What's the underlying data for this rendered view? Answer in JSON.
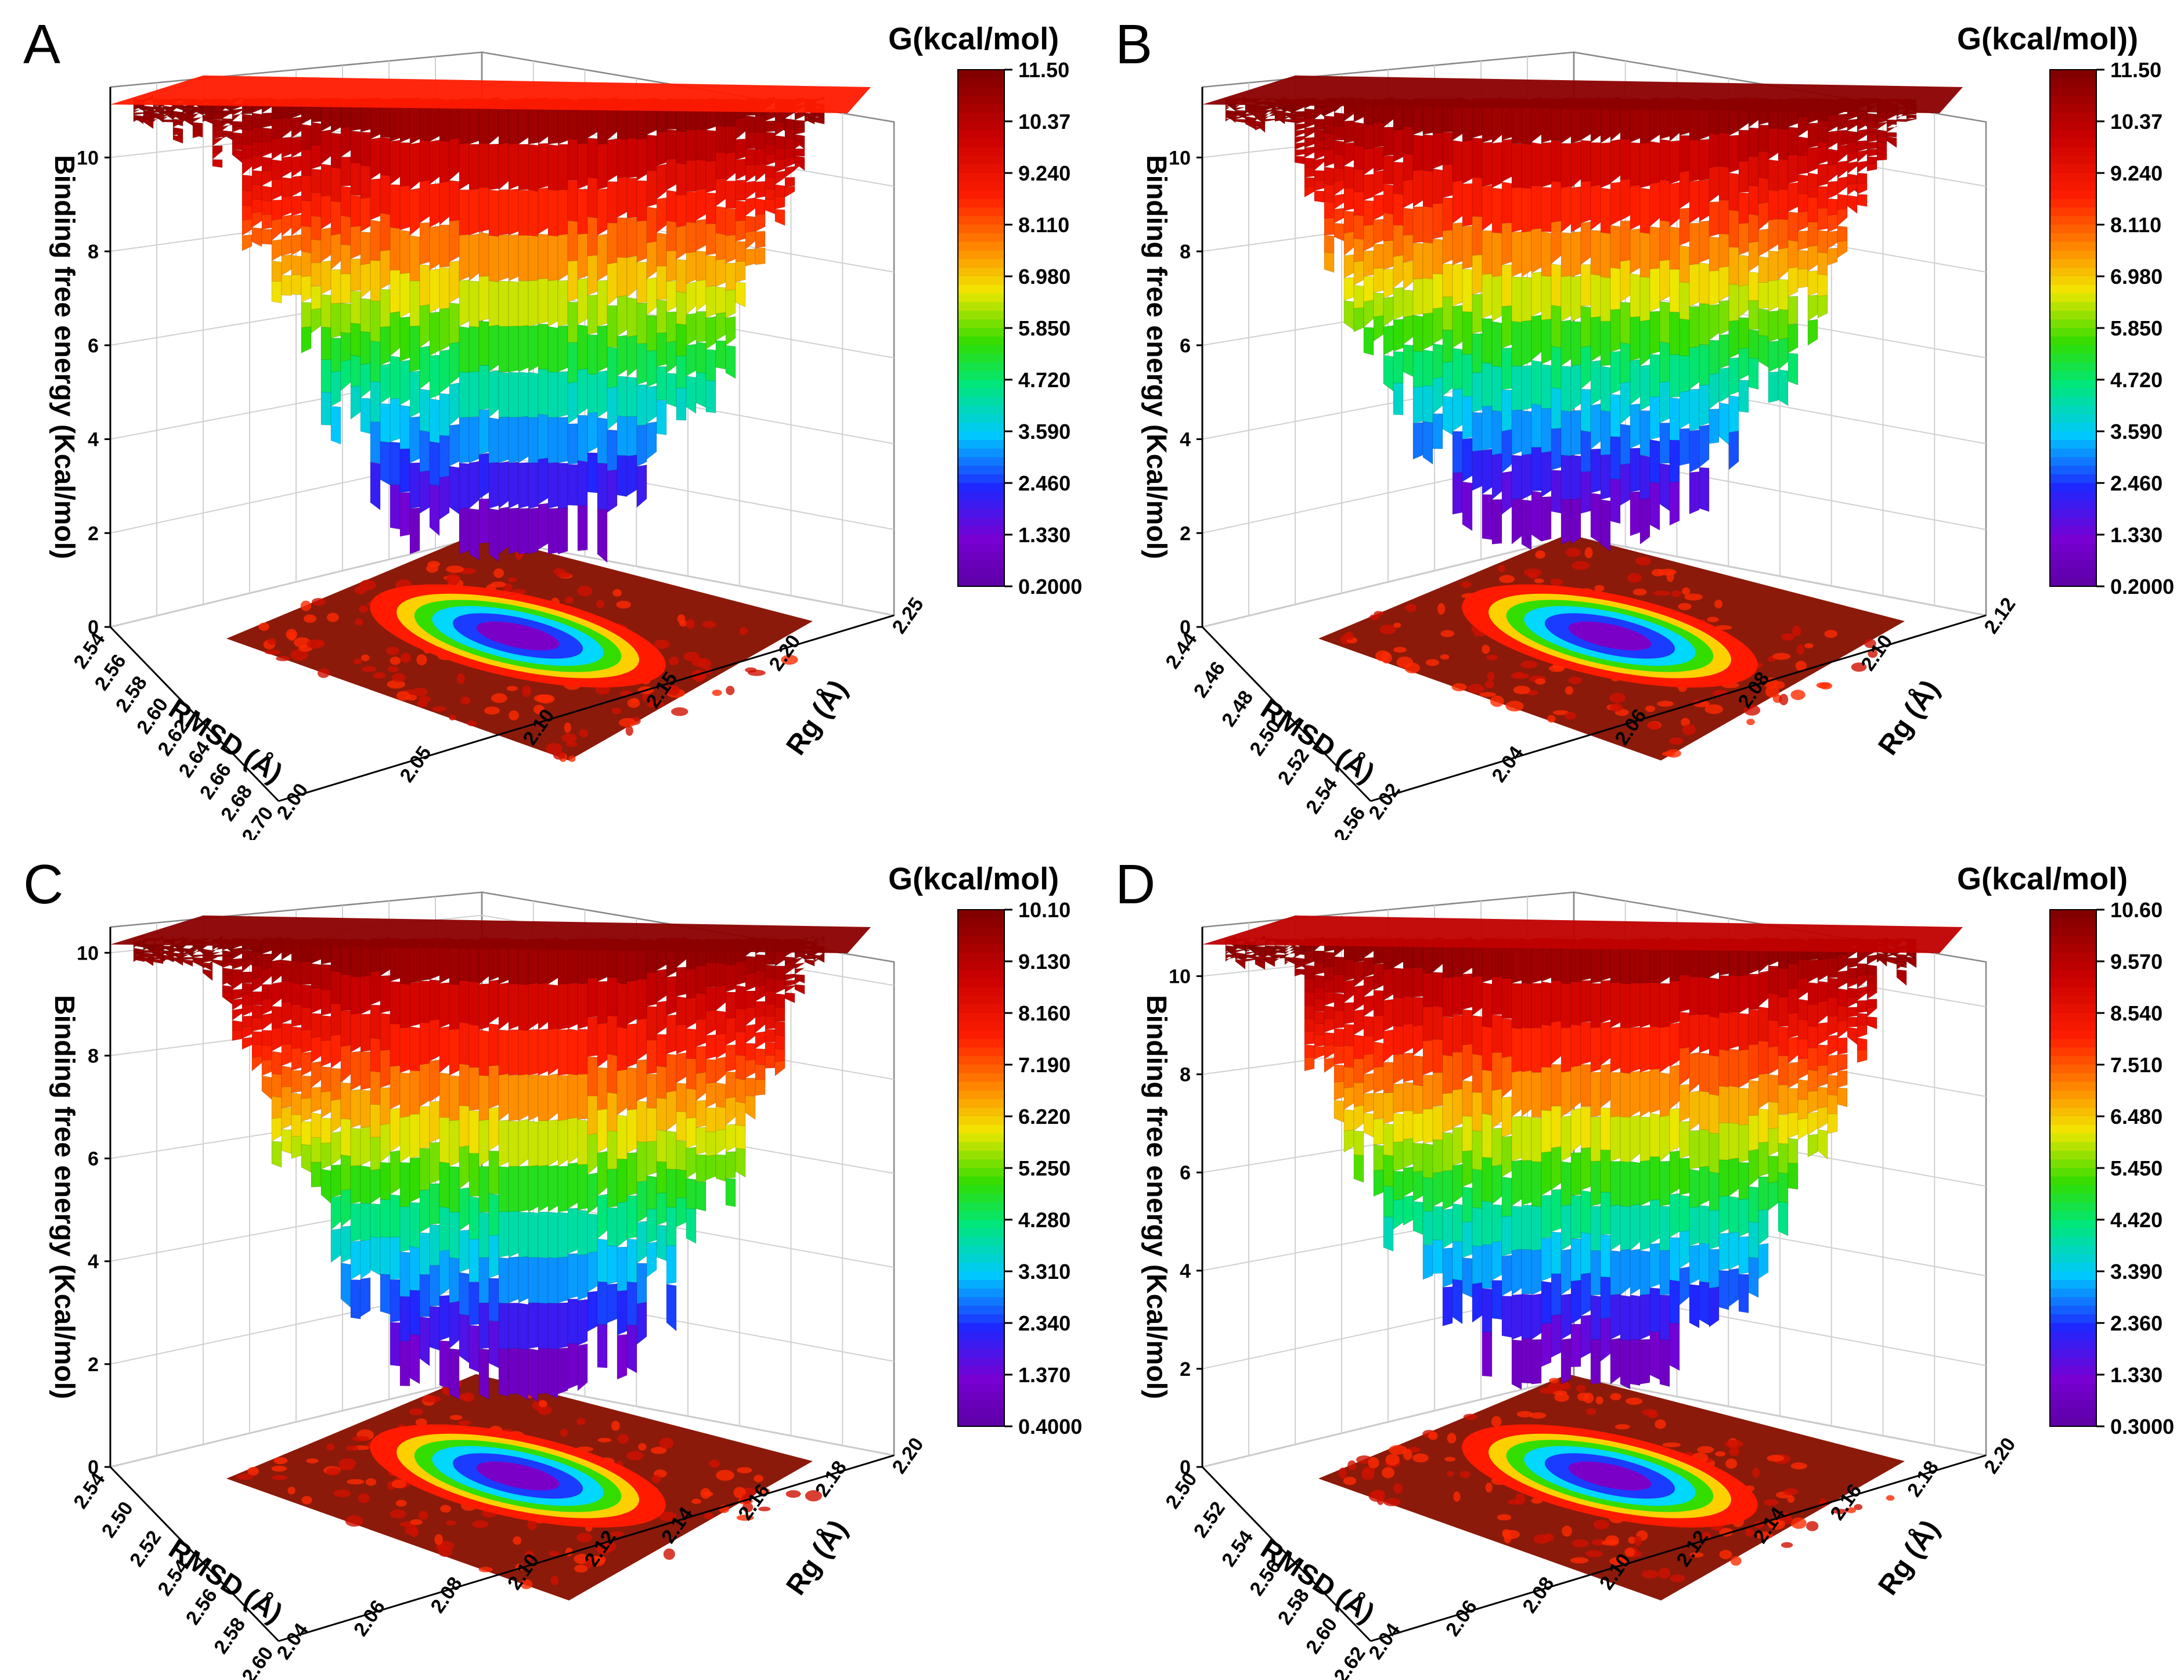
{
  "chart_data": [
    {
      "type": "surface3d",
      "panel": "A",
      "zlabel": "Binding free energy (Kcal/mol)",
      "xlabel": "RMSD (Å)",
      "ylabel": "Rg (Å)",
      "colorbar_title": "G(kcal/mol)",
      "colorbar_ticks": [
        "11.50",
        "10.37",
        "9.240",
        "8.110",
        "6.980",
        "5.850",
        "4.720",
        "3.590",
        "2.460",
        "1.330",
        "0.2000"
      ],
      "z_ticks": [
        "0",
        "2",
        "4",
        "6",
        "8",
        "10"
      ],
      "x_ticks": [
        "2.54",
        "2.56",
        "2.58",
        "2.60",
        "2.62",
        "2.64",
        "2.66",
        "2.68",
        "2.70"
      ],
      "y_ticks": [
        "2.00",
        "2.05",
        "2.10",
        "2.15",
        "2.20",
        "2.25"
      ],
      "zlim": [
        0,
        11.5
      ]
    },
    {
      "type": "surface3d",
      "panel": "B",
      "zlabel": "Binding free energy (Kcal/mol)",
      "xlabel": "RMSD (Å)",
      "ylabel": "Rg (Å)",
      "colorbar_title": "G(kcal/mol))",
      "colorbar_ticks": [
        "11.50",
        "10.37",
        "9.240",
        "8.110",
        "6.980",
        "5.850",
        "4.720",
        "3.590",
        "2.460",
        "1.330",
        "0.2000"
      ],
      "z_ticks": [
        "0",
        "2",
        "4",
        "6",
        "8",
        "10"
      ],
      "x_ticks": [
        "2.44",
        "2.46",
        "2.48",
        "2.50",
        "2.52",
        "2.54",
        "2.56"
      ],
      "y_ticks": [
        "2.02",
        "2.04",
        "2.06",
        "2.08",
        "2.10",
        "2.12"
      ],
      "zlim": [
        0,
        11.5
      ]
    },
    {
      "type": "surface3d",
      "panel": "C",
      "zlabel": "Binding free energy (Kcal/mol)",
      "xlabel": "RMSD (Å)",
      "ylabel": "Rg (Å)",
      "colorbar_title": "G(kcal/mol)",
      "colorbar_ticks": [
        "10.10",
        "9.130",
        "8.160",
        "7.190",
        "6.220",
        "5.250",
        "4.280",
        "3.310",
        "2.340",
        "1.370",
        "0.4000"
      ],
      "z_ticks": [
        "0",
        "2",
        "4",
        "6",
        "8",
        "10"
      ],
      "x_ticks": [
        "2.54",
        "2.50",
        "2.52",
        "2.54",
        "2.56",
        "2.58",
        "2.60"
      ],
      "y_ticks": [
        "2.04",
        "2.06",
        "2.08",
        "2.10",
        "2.12",
        "2.14",
        "2.16",
        "2.18",
        "2.20"
      ],
      "zlim": [
        0,
        10.5
      ]
    },
    {
      "type": "surface3d",
      "panel": "D",
      "zlabel": "Binding free energy (Kcal/mol)",
      "xlabel": "RMSD (Å)",
      "ylabel": "Rg (Å)",
      "colorbar_title": "G(kcal/mol)",
      "colorbar_ticks": [
        "10.60",
        "9.570",
        "8.540",
        "7.510",
        "6.480",
        "5.450",
        "4.420",
        "3.390",
        "2.360",
        "1.330",
        "0.3000"
      ],
      "z_ticks": [
        "0",
        "2",
        "4",
        "6",
        "8",
        "10"
      ],
      "x_ticks": [
        "2.50",
        "2.52",
        "2.54",
        "2.56",
        "2.58",
        "2.60",
        "2.62"
      ],
      "y_ticks": [
        "2.04",
        "2.06",
        "2.08",
        "2.10",
        "2.12",
        "2.14",
        "2.16",
        "2.18",
        "2.20"
      ],
      "zlim": [
        0,
        11
      ]
    }
  ],
  "colors": {
    "top": "#8b0000",
    "red": "#ff1a00",
    "orange": "#ff8c00",
    "yellow": "#f0e000",
    "green": "#33dd00",
    "cyan": "#00d8ff",
    "blue": "#1a3cff",
    "purple": "#7a00c8",
    "floor": "#8b1a0a"
  }
}
